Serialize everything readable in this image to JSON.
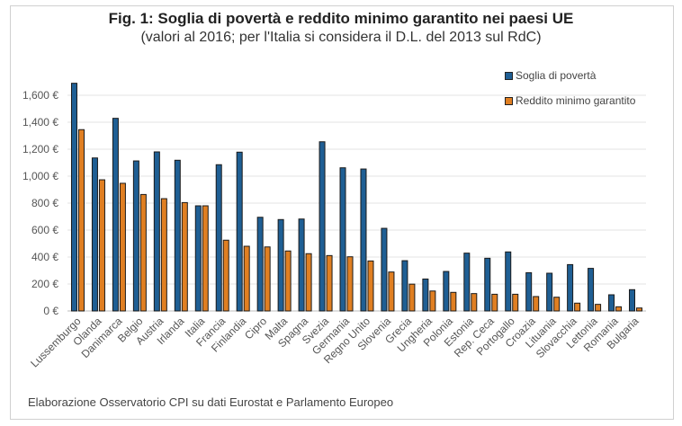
{
  "chart_data": {
    "type": "bar",
    "title": "Fig. 1: Soglia di povertà e reddito minimo garantito nei paesi UE",
    "subtitle": "(valori al 2016; per l'Italia si considera il D.L. del 2013 sul RdC)",
    "xlabel": "",
    "ylabel": "",
    "ylim": [
      0,
      1700
    ],
    "yticks": [
      0,
      200,
      400,
      600,
      800,
      1000,
      1200,
      1400,
      1600
    ],
    "ytick_labels": [
      "0 €",
      "200 €",
      "400 €",
      "600 €",
      "800 €",
      "1,000 €",
      "1,200 €",
      "1,400 €",
      "1,600 €"
    ],
    "grid": true,
    "legend_position": "top-right",
    "categories": [
      "Lussemburgo",
      "Olanda",
      "Danimarca",
      "Belgio",
      "Austria",
      "Irlanda",
      "Italia",
      "Francia",
      "Finlandia",
      "Cipro",
      "Malta",
      "Spagna",
      "Svezia",
      "Germania",
      "Regno Unito",
      "Slovenia",
      "Grecia",
      "Ungheria",
      "Polonia",
      "Estonia",
      "Rep. Ceca",
      "Portogallo",
      "Croazia",
      "Lituania",
      "Slovacchia",
      "Lettonia",
      "Romania",
      "Bulgaria"
    ],
    "series": [
      {
        "name": "Soglia di povertà",
        "color": "#1f5f94",
        "values": [
          1689,
          1135,
          1429,
          1113,
          1180,
          1118,
          780,
          1085,
          1178,
          695,
          678,
          682,
          1255,
          1062,
          1053,
          613,
          373,
          237,
          293,
          429,
          391,
          438,
          284,
          280,
          344,
          316,
          120,
          158
        ]
      },
      {
        "name": "Reddito minimo garantito",
        "color": "#e07f22",
        "values": [
          1345,
          973,
          947,
          864,
          833,
          804,
          780,
          525,
          480,
          475,
          445,
          425,
          411,
          402,
          371,
          289,
          199,
          148,
          138,
          129,
          124,
          124,
          107,
          102,
          58,
          49,
          31,
          22
        ]
      }
    ],
    "source_note": "Elaborazione Osservatorio CPI su dati Eurostat e Parlamento Europeo"
  }
}
